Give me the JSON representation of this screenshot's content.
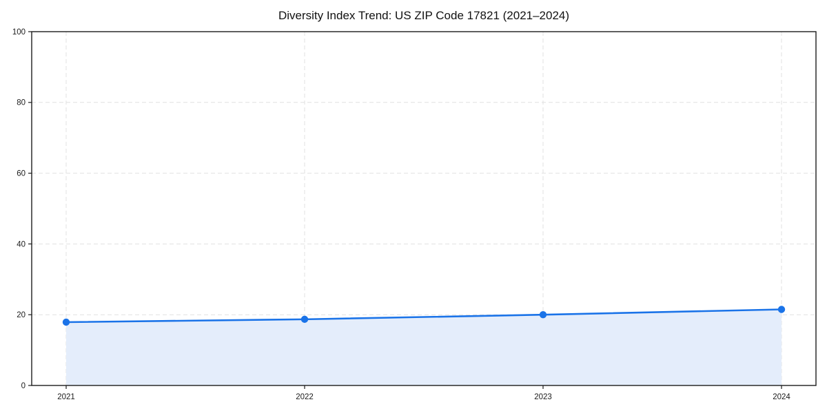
{
  "chart_data": {
    "type": "area",
    "title": "Diversity Index Trend: US ZIP Code 17821 (2021–2024)",
    "series_name": "Diversity Index",
    "categories": [
      "2021",
      "2022",
      "2023",
      "2024"
    ],
    "values": [
      17.9,
      18.7,
      20.0,
      21.5
    ],
    "xlabel": "",
    "ylabel": "",
    "ylim": [
      0,
      100
    ],
    "yticks": [
      0,
      20,
      40,
      60,
      80,
      100
    ],
    "grid": "dashed",
    "legend_position": "none",
    "colors": {
      "line": "#1a73e8",
      "marker": "#1a73e8",
      "area_fill": "#e4edfb",
      "gridline": "#e1e1e1",
      "spine": "#1b1b1b",
      "tick_label": "#1a1a1a",
      "background": "#ffffff"
    }
  }
}
